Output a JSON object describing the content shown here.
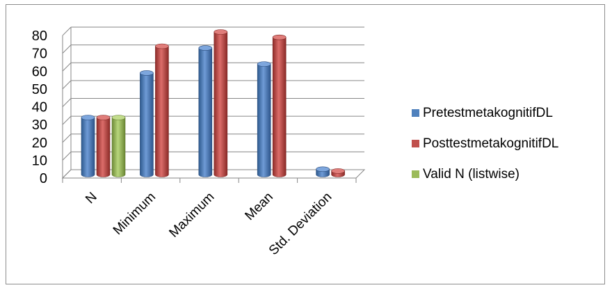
{
  "chart_data": {
    "type": "bar",
    "style": "3d-clustered-column",
    "categories": [
      "N",
      "Minimum",
      "Maximum",
      "Mean",
      "Std. Deviation"
    ],
    "series": [
      {
        "name": "PretestmetakognitifDL",
        "color": "#4f81bd",
        "values": [
          32,
          57,
          71,
          62,
          3
        ]
      },
      {
        "name": "PosttestmetakognitifDL",
        "color": "#c0504d",
        "values": [
          32,
          72,
          80,
          77,
          2
        ]
      },
      {
        "name": "Valid N (listwise)",
        "color": "#9bbb59",
        "values": [
          32,
          null,
          null,
          null,
          null
        ]
      }
    ],
    "yticks": [
      0,
      10,
      20,
      30,
      40,
      50,
      60,
      70,
      80
    ],
    "ylim": [
      0,
      80
    ],
    "grid": true,
    "legend_position": "right"
  }
}
